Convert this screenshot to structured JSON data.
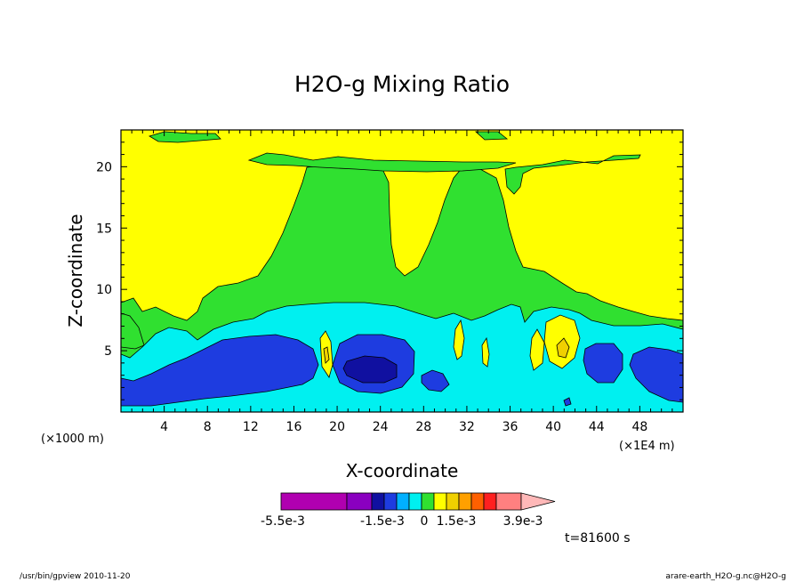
{
  "chart_data": {
    "type": "heatmap",
    "title": "H2O-g Mixing Ratio",
    "xlabel": "X-coordinate",
    "ylabel": "Z-coordinate",
    "x_unit_label": "(×1000 m)",
    "x_scale_label": "(×1E4 m)",
    "xlim": [
      0,
      52
    ],
    "ylim": [
      0,
      23
    ],
    "x_ticks": [
      4,
      8,
      12,
      16,
      20,
      24,
      28,
      32,
      36,
      40,
      44,
      48
    ],
    "y_ticks": [
      5,
      10,
      15,
      20
    ],
    "colorbar": {
      "colors": [
        "#b000b0",
        "#8a00c0",
        "#1010a0",
        "#1e3ce0",
        "#00b0ff",
        "#00f0f0",
        "#30e030",
        "#ffff00",
        "#f0d000",
        "#ffa000",
        "#ff6000",
        "#ff2020",
        "#ff8080",
        "#ffb8b8"
      ],
      "tick_labels": [
        "-5.5e-3",
        "-1.5e-3",
        "0",
        "1.5e-3",
        "3.9e-3"
      ]
    },
    "time_label": "t=81600 s"
  },
  "footer": {
    "left": "/usr/bin/gpview   2010-11-20",
    "right": "arare-earth_H2O-g.nc@H2O-g"
  }
}
